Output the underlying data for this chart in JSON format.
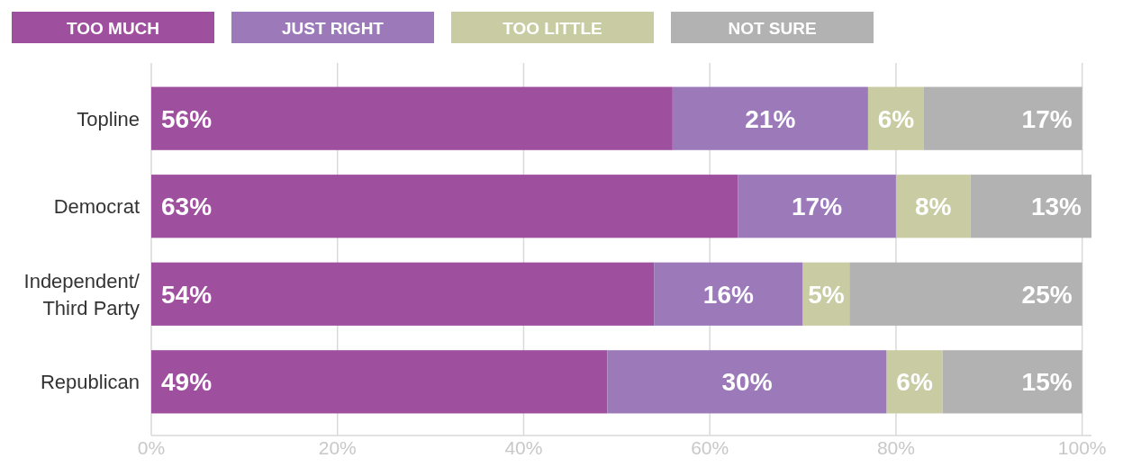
{
  "chart_data": {
    "type": "bar",
    "orientation": "horizontal",
    "stacked": true,
    "categories": [
      "Topline",
      "Democrat",
      "Independent/\nThird Party",
      "Republican"
    ],
    "series": [
      {
        "name": "TOO MUCH",
        "color": "#9e4f9e",
        "values": [
          56,
          63,
          54,
          49
        ],
        "value_labels": [
          "56%",
          "63%",
          "54%",
          "49%"
        ]
      },
      {
        "name": "JUST RIGHT",
        "color": "#9c7aba",
        "values": [
          21,
          17,
          16,
          30
        ],
        "value_labels": [
          "21%",
          "17%",
          "16%",
          "30%"
        ]
      },
      {
        "name": "TOO LITTLE",
        "color": "#c9cca3",
        "values": [
          6,
          8,
          5,
          6
        ],
        "value_labels": [
          "6%",
          "8%",
          "5%",
          "6%"
        ]
      },
      {
        "name": "NOT SURE",
        "color": "#b2b2b2",
        "values": [
          17,
          13,
          25,
          15
        ],
        "value_labels": [
          "17%",
          "13%",
          "25%",
          "15%"
        ]
      }
    ],
    "xlim": [
      0,
      101
    ],
    "xticks": [
      {
        "value": 0,
        "label": "0%"
      },
      {
        "value": 20,
        "label": "20%"
      },
      {
        "value": 40,
        "label": "40%"
      },
      {
        "value": 60,
        "label": "60%"
      },
      {
        "value": 80,
        "label": "80%"
      },
      {
        "value": 100,
        "label": "100%"
      }
    ],
    "grid": "x",
    "legend": "top"
  }
}
